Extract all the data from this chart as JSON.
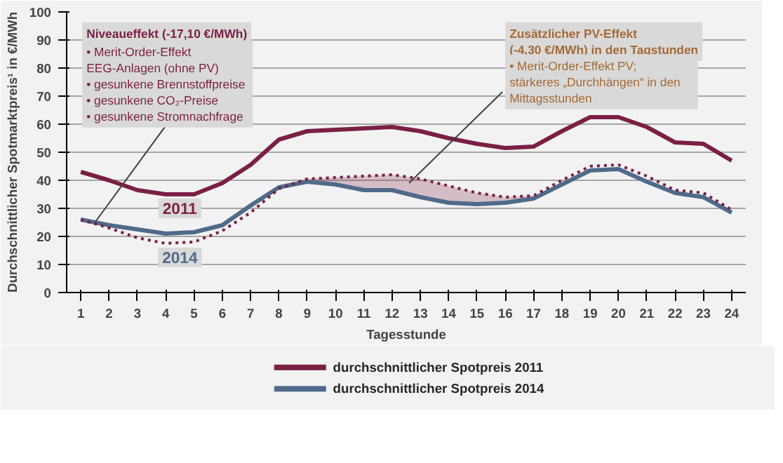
{
  "chart_data": {
    "type": "line",
    "xlabel": "Tagesstunde",
    "ylabel": "Durchschnittlicher Spotmarktpreis¹ in €/MWh",
    "x": [
      1,
      2,
      3,
      4,
      5,
      6,
      7,
      8,
      9,
      10,
      11,
      12,
      13,
      14,
      15,
      16,
      17,
      18,
      19,
      20,
      21,
      22,
      23,
      24
    ],
    "xlim": [
      0.5,
      24.5
    ],
    "xticks": [
      1,
      2,
      3,
      4,
      5,
      6,
      7,
      8,
      9,
      10,
      11,
      12,
      13,
      14,
      15,
      16,
      17,
      18,
      19,
      20,
      21,
      22,
      23,
      24
    ],
    "ylim": [
      0,
      100
    ],
    "yticks": [
      0,
      10,
      20,
      30,
      40,
      50,
      60,
      70,
      80,
      90,
      100
    ],
    "grid": "y",
    "legend": "bottom",
    "marker": "none",
    "series": [
      {
        "name": "durchschnittlicher Spotpreis 2011",
        "color": "#7b1f45",
        "line_style": "solid",
        "values": [
          43,
          40,
          36.5,
          35,
          35,
          39,
          45.5,
          54.5,
          57.5,
          58,
          58.5,
          59,
          57.5,
          55,
          53,
          51.5,
          52,
          57.5,
          62.5,
          62.5,
          59,
          53.5,
          53,
          47
        ]
      },
      {
        "name": "durchschnittlicher Spotpreis 2014",
        "color": "#4f6a8a",
        "line_style": "solid",
        "values": [
          26,
          24,
          22.5,
          21,
          21.5,
          24,
          31,
          37.5,
          39.5,
          38.5,
          36.5,
          36.5,
          34,
          32,
          31.5,
          32,
          33.5,
          38.5,
          43.5,
          44,
          39.5,
          35.5,
          34,
          28.5
        ]
      },
      {
        "color": "#7b1f45",
        "line_style": "dotted",
        "values": [
          26,
          23,
          19.5,
          17.5,
          18,
          22,
          28.5,
          37,
          40.5,
          41,
          41.5,
          42,
          40.5,
          38,
          35.5,
          34,
          34.5,
          40,
          45,
          45.5,
          41.5,
          36.5,
          35.5,
          29.5
        ],
        "lower": [
          null,
          null,
          null,
          null,
          null,
          null,
          null,
          null,
          39.5,
          38.5,
          36.5,
          36.5,
          34,
          32,
          31.5,
          32,
          33.5,
          null,
          null,
          null,
          null,
          null,
          null,
          null
        ],
        "upper": [
          null,
          null,
          null,
          null,
          null,
          null,
          null,
          null,
          40.5,
          41,
          41.5,
          42,
          40.5,
          38,
          35.5,
          34,
          34.5,
          null,
          null,
          null,
          null,
          null,
          null,
          null
        ]
      }
    ],
    "annotations": [
      "Niveaueffekt (-17,10 €/MWh)",
      {
        "text": "•  Merit-Order-Effekt\n    EEG-Anlagen (ohne PV)\n•  gesunkene Brennstoffpreise\n•  gesunkene CO₂-Preise\n•  gesunkene Stromnachfrage",
        "x": 1.5,
        "y": 25
      },
      "Zusätzlicher PV-Effekt\n(-4,30 €/MWh) in den Tagstunden",
      {
        "text": "•  Merit-Order-Effekt PV;\n    stärkeres „Durchhängen“ in den\n    Mittagsstunden",
        "x": 12.6,
        "y": 39
      },
      {
        "text": "2011",
        "x": 4.5,
        "y": 30
      },
      {
        "text": "2014",
        "x": 4.5,
        "y": 12.5
      }
    ]
  }
}
